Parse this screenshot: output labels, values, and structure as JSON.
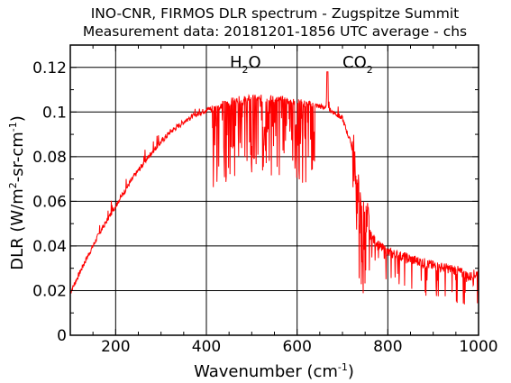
{
  "chart_data": {
    "type": "line",
    "title": [
      "INO-CNR, FIRMOS DLR spectrum - Zugspitze Summit",
      "Measurement data: 20181201-1856 UTC average - chs"
    ],
    "xlabel": {
      "text": "Wavenumber (cm",
      "superscript": "-1",
      "suffix": ")"
    },
    "ylabel": {
      "text": "DLR (W/m",
      "sup1": "2",
      "mid": "-sr-cm",
      "sup2": "-1",
      "suffix": ")"
    },
    "xlim": [
      100,
      1000
    ],
    "ylim": [
      0,
      0.13
    ],
    "grid": true,
    "x_ticks": [
      {
        "value": 200,
        "label": "200"
      },
      {
        "value": 400,
        "label": "400"
      },
      {
        "value": 600,
        "label": "600"
      },
      {
        "value": 800,
        "label": "800"
      },
      {
        "value": 1000,
        "label": "1000"
      }
    ],
    "y_ticks": [
      {
        "value": 0,
        "label": "0"
      },
      {
        "value": 0.02,
        "label": "0.02"
      },
      {
        "value": 0.04,
        "label": "0.04"
      },
      {
        "value": 0.06,
        "label": "0.06"
      },
      {
        "value": 0.08,
        "label": "0.08"
      },
      {
        "value": 0.1,
        "label": "0.1"
      },
      {
        "value": 0.12,
        "label": "0.12"
      }
    ],
    "annotations": [
      {
        "main": "H",
        "sub": "2",
        "tail": "O",
        "x": 530,
        "y": 0.123
      },
      {
        "main": "CO",
        "sub": "2",
        "tail": "",
        "x": 690,
        "y": 0.123
      }
    ],
    "series": [
      {
        "color": "#ff0000",
        "x": [
          100,
          130,
          160,
          200,
          240,
          280,
          320,
          360,
          400,
          430,
          460,
          500,
          540,
          580,
          610,
          640,
          660,
          680,
          700,
          720,
          740,
          760,
          780,
          800,
          850,
          900,
          950,
          980,
          1000
        ],
        "y": [
          0.019,
          0.032,
          0.044,
          0.058,
          0.071,
          0.082,
          0.091,
          0.097,
          0.101,
          0.103,
          0.105,
          0.106,
          0.106,
          0.105,
          0.104,
          0.103,
          0.102,
          0.1,
          0.097,
          0.085,
          0.05,
          0.045,
          0.04,
          0.037,
          0.034,
          0.031,
          0.029,
          0.026,
          0.028
        ]
      }
    ]
  }
}
